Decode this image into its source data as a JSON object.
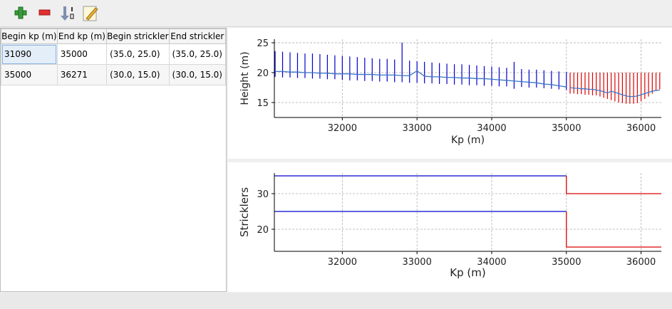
{
  "table": {
    "columns": [
      "Begin kp (m)",
      "End kp (m)",
      "Begin strickler",
      "End strickler"
    ],
    "rows": [
      [
        "31090",
        "35000",
        "(35.0, 25.0)",
        "(35.0, 25.0)"
      ],
      [
        "35000",
        "36271",
        "(30.0, 15.0)",
        "(30.0, 15.0)"
      ]
    ]
  },
  "chart_data": [
    {
      "type": "profile",
      "ylabel": "Height (m)",
      "xlabel": "Kp (m)",
      "xlim": [
        31090,
        36271
      ],
      "ylim": [
        12.5,
        25.6
      ],
      "xticks": [
        32000,
        33000,
        34000,
        35000,
        36000
      ],
      "yticks": [
        15,
        20,
        25
      ],
      "grid": true,
      "series": [
        {
          "color": "#0000cc",
          "x": [
            31100,
            31200,
            31300,
            31400,
            31500,
            31600,
            31700,
            31800,
            31900,
            32000,
            32100,
            32200,
            32300,
            32400,
            32500,
            32600,
            32700,
            32800,
            32900,
            33000,
            33100,
            33200,
            33300,
            33400,
            33500,
            33600,
            33700,
            33800,
            33900,
            34000,
            34100,
            34200,
            34300,
            34400,
            34500,
            34600,
            34700,
            34800,
            34900,
            35000
          ],
          "low": [
            19.3,
            19.2,
            19.2,
            19.1,
            19.1,
            19.0,
            19.0,
            18.9,
            18.9,
            18.8,
            18.7,
            18.7,
            18.6,
            18.6,
            18.5,
            18.5,
            18.4,
            18.4,
            18.3,
            18.3,
            18.2,
            18.2,
            18.1,
            18.1,
            18.0,
            18.0,
            17.9,
            17.9,
            17.8,
            17.8,
            17.7,
            17.7,
            17.3,
            17.6,
            17.5,
            17.5,
            17.4,
            17.3,
            17.2,
            17.1
          ],
          "high": [
            23.6,
            23.5,
            23.4,
            23.3,
            23.2,
            23.2,
            23.1,
            23.0,
            22.9,
            22.8,
            22.7,
            22.6,
            22.5,
            22.4,
            22.3,
            22.3,
            22.2,
            25.0,
            22.0,
            21.9,
            21.8,
            21.7,
            21.6,
            21.5,
            21.4,
            21.4,
            21.3,
            21.2,
            21.1,
            21.0,
            20.9,
            20.8,
            21.8,
            20.6,
            20.5,
            20.5,
            20.4,
            20.3,
            20.2,
            20.1
          ]
        },
        {
          "color": "#dd0000",
          "x": [
            35050,
            35100,
            35150,
            35200,
            35250,
            35300,
            35350,
            35400,
            35450,
            35500,
            35550,
            35600,
            35650,
            35700,
            35750,
            35800,
            35850,
            35900,
            35950,
            36000,
            36050,
            36100,
            36150,
            36200,
            36250
          ],
          "low": [
            16.5,
            16.5,
            16.4,
            16.4,
            16.3,
            16.3,
            16.2,
            16.2,
            16.0,
            15.8,
            15.6,
            15.4,
            15.2,
            15.0,
            14.9,
            14.8,
            14.8,
            14.8,
            14.9,
            15.2,
            15.6,
            16.0,
            16.5,
            17.0,
            17.2
          ],
          "high": [
            20.0,
            20.0,
            20.0,
            20.0,
            20.0,
            20.0,
            20.0,
            20.0,
            20.0,
            20.0,
            20.0,
            20.0,
            20.0,
            20.0,
            20.0,
            20.0,
            20.0,
            20.0,
            20.0,
            20.0,
            20.0,
            20.0,
            20.0,
            20.0,
            20.0
          ]
        },
        {
          "color": "#3b75c8",
          "x": [
            31100,
            31200,
            31300,
            31400,
            31500,
            31600,
            31700,
            31800,
            31900,
            32000,
            32100,
            32200,
            32300,
            32400,
            32500,
            32600,
            32700,
            32800,
            32900,
            33000,
            33100,
            33200,
            33300,
            33400,
            33500,
            33600,
            33700,
            33800,
            33900,
            34000,
            34100,
            34200,
            34300,
            34400,
            34500,
            34600,
            34700,
            34800,
            34900,
            35000
          ],
          "values": [
            20.2,
            20.2,
            20.1,
            20.1,
            20.0,
            20.0,
            19.9,
            19.9,
            19.8,
            19.8,
            19.8,
            19.7,
            19.7,
            19.7,
            19.6,
            19.6,
            19.6,
            19.5,
            19.5,
            20.3,
            19.4,
            19.3,
            19.3,
            19.2,
            19.2,
            19.1,
            19.1,
            19.0,
            19.0,
            18.9,
            18.8,
            18.7,
            18.6,
            18.5,
            18.4,
            18.3,
            18.1,
            18.0,
            17.8,
            17.6
          ]
        },
        {
          "color": "#3b75c8",
          "x": [
            35050,
            35100,
            35150,
            35200,
            35250,
            35300,
            35350,
            35400,
            35450,
            35500,
            35550,
            35600,
            35650,
            35700,
            35750,
            35800,
            35850,
            35900,
            35950,
            36000,
            36050,
            36100,
            36150,
            36200,
            36250
          ],
          "values": [
            17.5,
            17.4,
            17.4,
            17.3,
            17.3,
            17.2,
            17.2,
            17.1,
            17.0,
            16.8,
            16.6,
            16.9,
            16.7,
            16.5,
            16.3,
            16.1,
            16.0,
            16.0,
            16.1,
            16.3,
            16.5,
            16.7,
            16.9,
            17.0,
            17.1
          ]
        }
      ]
    },
    {
      "type": "line",
      "ylabel": "Stricklers",
      "xlabel": "Kp (m)",
      "xlim": [
        31090,
        36271
      ],
      "ylim": [
        13.8,
        35.8
      ],
      "xticks": [
        32000,
        33000,
        34000,
        35000,
        36000
      ],
      "yticks": [
        20,
        30
      ],
      "grid": true,
      "series": [
        {
          "color": "#0000cc",
          "x": [
            31090,
            35000
          ],
          "values": [
            35,
            35
          ]
        },
        {
          "color": "#0000cc",
          "x": [
            31090,
            35000
          ],
          "values": [
            25,
            25
          ]
        },
        {
          "color": "#dd0000",
          "x": [
            35000,
            35000,
            36271
          ],
          "values": [
            35,
            30,
            30
          ]
        },
        {
          "color": "#dd0000",
          "x": [
            35000,
            35000,
            36271
          ],
          "values": [
            25,
            15,
            15
          ]
        }
      ]
    }
  ]
}
